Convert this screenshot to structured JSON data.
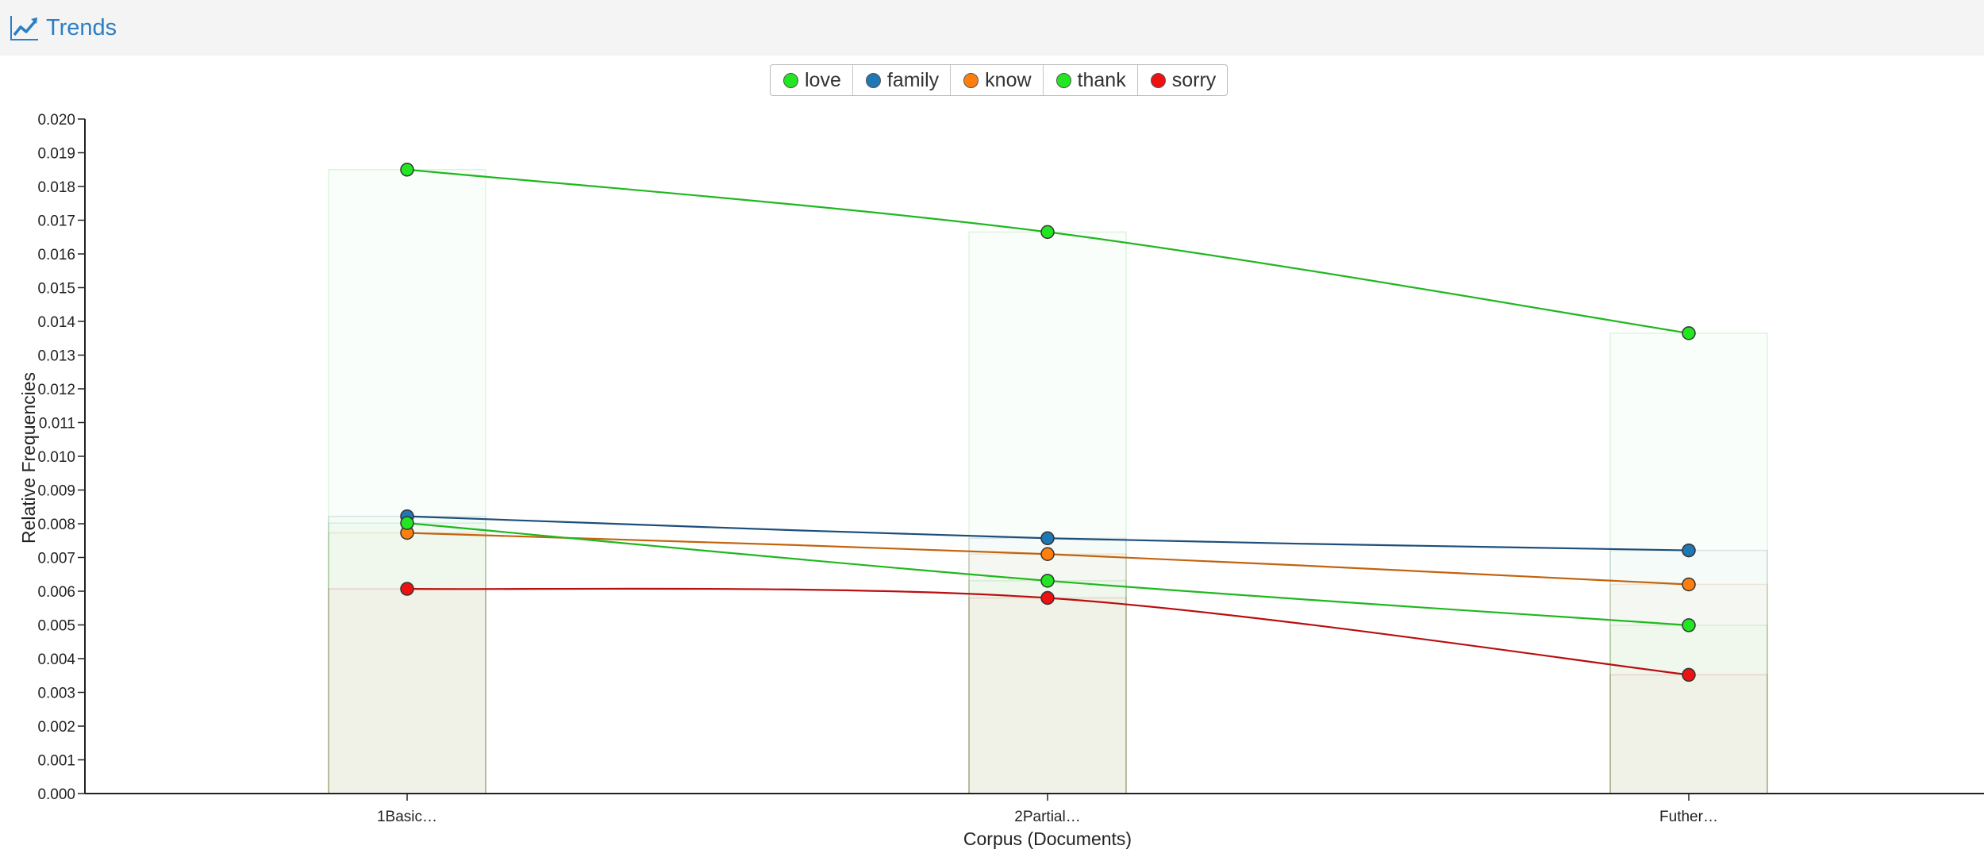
{
  "header": {
    "title": "Trends",
    "icon": "trend-line-icon"
  },
  "chart_data": {
    "type": "line",
    "categories": [
      "1Basic…",
      "2Partial…",
      "Futher…"
    ],
    "series": [
      {
        "name": "love",
        "color": "#22e622",
        "line_color": "#1fb81f",
        "values": [
          0.0185,
          0.01665,
          0.01365
        ]
      },
      {
        "name": "family",
        "color": "#1f77b4",
        "line_color": "#1d4e7a",
        "values": [
          0.00822,
          0.00757,
          0.00721
        ]
      },
      {
        "name": "know",
        "color": "#ff7f0e",
        "line_color": "#c2630f",
        "values": [
          0.00773,
          0.0071,
          0.0062
        ]
      },
      {
        "name": "thank",
        "color": "#22e622",
        "line_color": "#1fb81f",
        "values": [
          0.00802,
          0.00631,
          0.00499
        ]
      },
      {
        "name": "sorry",
        "color": "#ee1111",
        "line_color": "#b80f0f",
        "values": [
          0.00607,
          0.0058,
          0.00352
        ]
      }
    ],
    "xlabel": "Corpus (Documents)",
    "ylabel": "Relative Frequencies",
    "ylim": [
      0,
      0.02
    ],
    "ytick_step": 0.001,
    "grid": false,
    "legend_position": "top-center"
  }
}
